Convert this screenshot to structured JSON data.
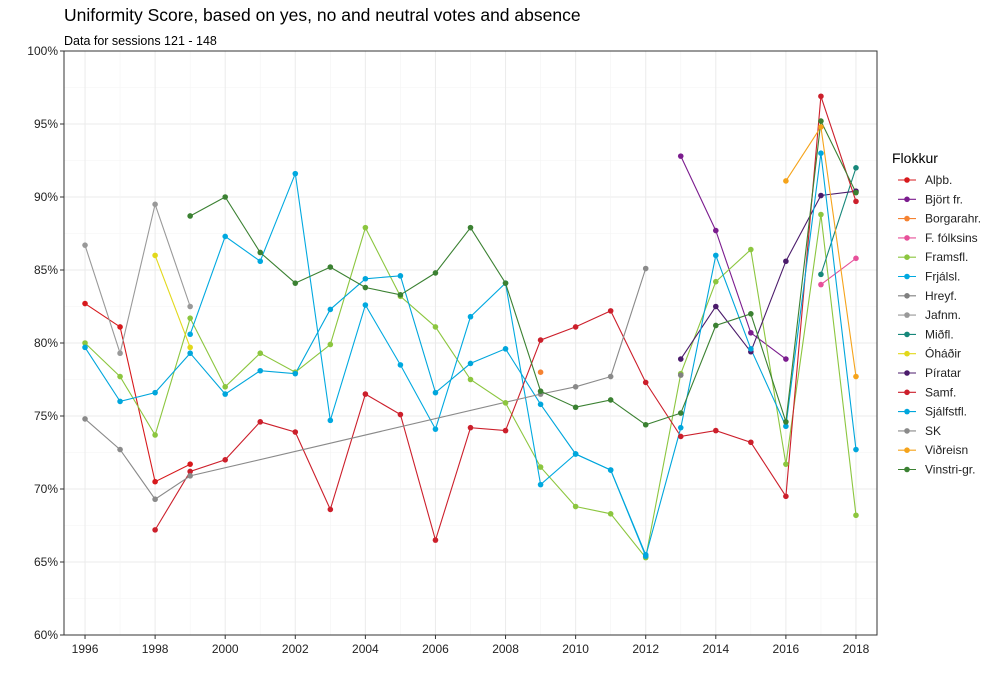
{
  "title": "Uniformity Score, based on yes, no and neutral votes and absence",
  "subtitle": "Data for sessions 121 - 148",
  "chart_data": {
    "type": "line",
    "title": "Uniformity Score, based on yes, no and neutral votes and absence",
    "subtitle": "Data for sessions 121 - 148",
    "xlabel": "",
    "ylabel": "",
    "xlim": [
      1995.4,
      2018.6
    ],
    "ylim": [
      60,
      100
    ],
    "x_ticks": [
      1996,
      1998,
      2000,
      2002,
      2004,
      2006,
      2008,
      2010,
      2012,
      2014,
      2016,
      2018
    ],
    "y_ticks": [
      60,
      65,
      70,
      75,
      80,
      85,
      90,
      95,
      100
    ],
    "y_tick_labels": [
      "60%",
      "65%",
      "70%",
      "75%",
      "80%",
      "85%",
      "90%",
      "95%",
      "100%"
    ],
    "grid": true,
    "legend_title": "Flokkur",
    "legend_position": "right",
    "series": [
      {
        "name": "Alþb.",
        "color": "#d7191c",
        "x": [
          1996,
          1997,
          1998,
          1999
        ],
        "y": [
          82.7,
          81.1,
          70.5,
          71.7
        ]
      },
      {
        "name": "Björt fr.",
        "color": "#7b1c8e",
        "x": [
          2013,
          2014,
          2015,
          2016
        ],
        "y": [
          92.8,
          87.7,
          80.7,
          78.9
        ]
      },
      {
        "name": "Borgarahr.",
        "color": "#f58231",
        "x": [
          2009
        ],
        "y": [
          78.0
        ]
      },
      {
        "name": "F. fólksins",
        "color": "#e7509a",
        "x": [
          2017,
          2018
        ],
        "y": [
          84.0,
          85.8
        ]
      },
      {
        "name": "Framsfl.",
        "color": "#8cc63f",
        "x": [
          1996,
          1997,
          1998,
          1999,
          2000,
          2001,
          2002,
          2003,
          2004,
          2005,
          2006,
          2007,
          2008,
          2009,
          2010,
          2011,
          2012,
          2013,
          2014,
          2015,
          2016,
          2017,
          2018
        ],
        "y": [
          80.0,
          77.7,
          73.7,
          81.7,
          77.0,
          79.3,
          78.0,
          79.9,
          87.9,
          83.2,
          81.1,
          77.5,
          75.9,
          71.5,
          68.8,
          68.3,
          65.3,
          77.9,
          84.2,
          86.4,
          71.7,
          88.8,
          68.2
        ]
      },
      {
        "name": "Frjálsl.",
        "color": "#00a9e0",
        "x": [
          1999,
          2000,
          2001,
          2002,
          2003,
          2004,
          2005,
          2006,
          2007,
          2008,
          2009,
          2010,
          2011,
          2012
        ],
        "y": [
          80.6,
          87.3,
          85.6,
          91.6,
          74.7,
          82.6,
          78.5,
          74.1,
          81.8,
          84.1,
          70.3,
          72.4,
          71.3,
          65.5
        ]
      },
      {
        "name": "Hreyf.",
        "color": "#808080",
        "x": [
          2013
        ],
        "y": [
          77.8
        ]
      },
      {
        "name": "Jafnm.",
        "color": "#999999",
        "x": [
          1996,
          1997,
          1998,
          1999
        ],
        "y": [
          86.7,
          79.3,
          89.5,
          82.5
        ]
      },
      {
        "name": "Miðfl.",
        "color": "#16877a",
        "x": [
          2017,
          2018
        ],
        "y": [
          84.7,
          92.0
        ]
      },
      {
        "name": "Óháðir",
        "color": "#e2d81b",
        "x": [
          1998,
          1999
        ],
        "y": [
          86.0,
          79.7
        ]
      },
      {
        "name": "Píratar",
        "color": "#4b1b6b",
        "x": [
          2013,
          2014,
          2015,
          2016,
          2017,
          2018
        ],
        "y": [
          78.9,
          82.5,
          79.4,
          85.6,
          90.1,
          90.4
        ]
      },
      {
        "name": "Samf.",
        "color": "#cc1f2b",
        "x": [
          1998,
          1999,
          2000,
          2001,
          2002,
          2003,
          2004,
          2005,
          2006,
          2007,
          2008,
          2009,
          2010,
          2011,
          2012,
          2013,
          2014,
          2015,
          2016,
          2017,
          2018
        ],
        "y": [
          67.2,
          71.2,
          72.0,
          74.6,
          73.9,
          68.6,
          76.5,
          75.1,
          66.5,
          74.2,
          74.0,
          80.2,
          81.1,
          82.2,
          77.3,
          73.6,
          74.0,
          73.2,
          69.5,
          96.9,
          89.7
        ]
      },
      {
        "name": "Sjálfstfl.",
        "color": "#00a6dc",
        "x": [
          1996,
          1997,
          1998,
          1999,
          2000,
          2001,
          2002,
          2003,
          2004,
          2005,
          2006,
          2007,
          2008,
          2009,
          2010,
          2011,
          2012,
          2013,
          2014,
          2015,
          2016,
          2017,
          2018
        ],
        "y": [
          79.7,
          76.0,
          76.6,
          79.3,
          76.5,
          78.1,
          77.9,
          82.3,
          84.4,
          84.6,
          76.6,
          78.6,
          79.6,
          75.8,
          72.4,
          71.3,
          65.4,
          74.2,
          86.0,
          79.6,
          74.3,
          93.0,
          72.7
        ]
      },
      {
        "name": "SK",
        "color": "#8a8a8a",
        "x": [
          1996,
          1997,
          1998,
          1999,
          2009,
          2010,
          2011,
          2012
        ],
        "y": [
          74.8,
          72.7,
          69.3,
          70.9,
          76.5,
          77.0,
          77.7,
          85.1
        ]
      },
      {
        "name": "Viðreisn",
        "color": "#f5a31a",
        "x": [
          2016,
          2017,
          2018
        ],
        "y": [
          91.1,
          94.8,
          77.7
        ]
      },
      {
        "name": "Vinstri-gr.",
        "color": "#3b8132",
        "x": [
          1999,
          2000,
          2001,
          2002,
          2003,
          2004,
          2005,
          2006,
          2007,
          2008,
          2009,
          2010,
          2011,
          2012,
          2013,
          2014,
          2015,
          2016,
          2017,
          2018
        ],
        "y": [
          88.7,
          90.0,
          86.2,
          84.1,
          85.2,
          83.8,
          83.3,
          84.8,
          87.9,
          84.1,
          76.7,
          75.6,
          76.1,
          74.4,
          75.2,
          81.2,
          82.0,
          74.6,
          95.2,
          90.3
        ]
      }
    ]
  }
}
